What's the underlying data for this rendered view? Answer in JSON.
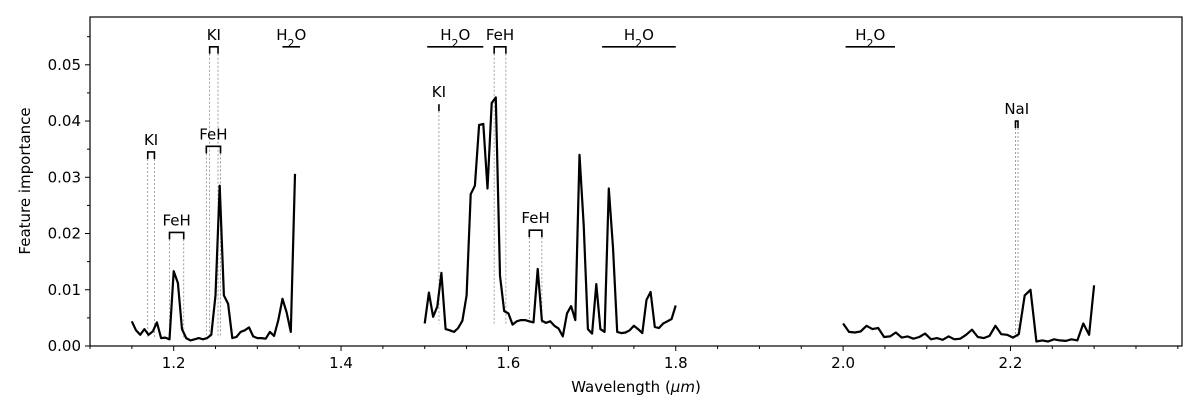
{
  "chart_data": {
    "type": "line",
    "title": "",
    "xlabel_prefix": "Wavelength (",
    "xlabel_unit": "μm",
    "xlabel_suffix": ")",
    "ylabel": "Feature importance",
    "xlim": [
      1.1,
      2.405
    ],
    "ylim": [
      0,
      0.0585
    ],
    "xticks": [
      1.2,
      1.4,
      1.6,
      1.8,
      2.0,
      2.2
    ],
    "xtick_labels": [
      "1.2",
      "1.4",
      "1.6",
      "1.8",
      "2.0",
      "2.2"
    ],
    "yticks": [
      0.0,
      0.01,
      0.02,
      0.03,
      0.04,
      0.05
    ],
    "ytick_labels": [
      "0.00",
      "0.01",
      "0.02",
      "0.03",
      "0.04",
      "0.05"
    ],
    "line_color": "#000000",
    "annotation_color": "#000000",
    "grid": false,
    "segments": [
      {
        "x": [
          1.15,
          1.155,
          1.16,
          1.165,
          1.17,
          1.175,
          1.18,
          1.185,
          1.19,
          1.195,
          1.2,
          1.205,
          1.21,
          1.215,
          1.22,
          1.225,
          1.23,
          1.235,
          1.24,
          1.245,
          1.25,
          1.255,
          1.26,
          1.265,
          1.27,
          1.275,
          1.28,
          1.285,
          1.29,
          1.295,
          1.3,
          1.305,
          1.31,
          1.315,
          1.32,
          1.325,
          1.33,
          1.335,
          1.34,
          1.345
        ],
        "y": [
          0.0044,
          0.0028,
          0.002,
          0.003,
          0.002,
          0.0026,
          0.0042,
          0.0014,
          0.0015,
          0.0012,
          0.0133,
          0.0112,
          0.003,
          0.0014,
          0.001,
          0.0012,
          0.0014,
          0.0012,
          0.0014,
          0.002,
          0.009,
          0.0285,
          0.009,
          0.0075,
          0.0014,
          0.0016,
          0.0025,
          0.0028,
          0.0033,
          0.0017,
          0.0014,
          0.0014,
          0.0013,
          0.0025,
          0.0018,
          0.0046,
          0.0084,
          0.006,
          0.0025,
          0.0306
        ]
      },
      {
        "x": [
          1.5,
          1.505,
          1.51,
          1.515,
          1.52,
          1.525,
          1.53,
          1.535,
          1.54,
          1.545,
          1.55,
          1.555,
          1.56,
          1.565,
          1.57,
          1.575,
          1.58,
          1.585,
          1.59,
          1.595,
          1.6,
          1.605,
          1.61,
          1.615,
          1.62,
          1.625,
          1.63,
          1.635,
          1.64,
          1.645,
          1.65,
          1.655,
          1.66,
          1.665,
          1.67,
          1.675,
          1.68,
          1.685,
          1.69,
          1.695,
          1.7,
          1.705,
          1.71,
          1.715,
          1.72,
          1.725,
          1.73,
          1.735,
          1.74,
          1.745,
          1.75,
          1.755,
          1.76,
          1.765,
          1.77,
          1.775,
          1.78,
          1.785,
          1.79,
          1.795,
          1.8
        ],
        "y": [
          0.004,
          0.0095,
          0.0052,
          0.007,
          0.013,
          0.003,
          0.0028,
          0.0025,
          0.0032,
          0.0045,
          0.009,
          0.027,
          0.0285,
          0.0393,
          0.0395,
          0.028,
          0.0432,
          0.0442,
          0.0125,
          0.0062,
          0.0058,
          0.0038,
          0.0044,
          0.0046,
          0.0046,
          0.0044,
          0.0042,
          0.0137,
          0.0045,
          0.0041,
          0.0044,
          0.0036,
          0.0031,
          0.0017,
          0.0058,
          0.0071,
          0.0046,
          0.034,
          0.0215,
          0.003,
          0.0022,
          0.011,
          0.003,
          0.0025,
          0.028,
          0.0175,
          0.0025,
          0.0023,
          0.0024,
          0.0028,
          0.0036,
          0.003,
          0.0023,
          0.0082,
          0.0096,
          0.0034,
          0.0032,
          0.004,
          0.0044,
          0.0048,
          0.0072
        ]
      },
      {
        "x": [
          2.0,
          2.007,
          2.014,
          2.021,
          2.028,
          2.035,
          2.042,
          2.049,
          2.056,
          2.063,
          2.07,
          2.077,
          2.084,
          2.091,
          2.098,
          2.105,
          2.112,
          2.119,
          2.126,
          2.133,
          2.14,
          2.147,
          2.154,
          2.161,
          2.168,
          2.175,
          2.182,
          2.189,
          2.196,
          2.203,
          2.21,
          2.217,
          2.224,
          2.231,
          2.238,
          2.245,
          2.252,
          2.259,
          2.266,
          2.273,
          2.28,
          2.287,
          2.294,
          2.3
        ],
        "y": [
          0.004,
          0.0025,
          0.0024,
          0.0026,
          0.0036,
          0.003,
          0.0032,
          0.0016,
          0.0017,
          0.0024,
          0.0015,
          0.0017,
          0.0013,
          0.0016,
          0.0022,
          0.0012,
          0.0014,
          0.0011,
          0.0017,
          0.0012,
          0.0013,
          0.002,
          0.0029,
          0.0016,
          0.0014,
          0.0018,
          0.0036,
          0.0021,
          0.002,
          0.0015,
          0.0021,
          0.009,
          0.01,
          0.0008,
          0.001,
          0.0008,
          0.0012,
          0.001,
          0.0009,
          0.0012,
          0.001,
          0.004,
          0.002,
          0.0108
        ]
      }
    ],
    "annotations": [
      {
        "label": "KI",
        "type": "bracket",
        "x1": 1.169,
        "x2": 1.177,
        "y": 0.0345,
        "drop_to": 0.0015
      },
      {
        "label": "KI",
        "type": "bracket",
        "x1": 1.243,
        "x2": 1.253,
        "y": 0.0532,
        "drop_to": 0.0015
      },
      {
        "label": "KI",
        "type": "tick",
        "x1": 1.517,
        "x2": 1.517,
        "y": 0.043,
        "drop_to": 0.004
      },
      {
        "label": "NaI",
        "type": "bracket",
        "x1": 2.206,
        "x2": 2.209,
        "y": 0.04,
        "drop_to": 0.0015
      },
      {
        "label": "FeH",
        "type": "bracket",
        "x1": 1.195,
        "x2": 1.212,
        "y": 0.0202,
        "drop_to": 0.0015
      },
      {
        "label": "FeH",
        "type": "bracket",
        "x1": 1.239,
        "x2": 1.256,
        "y": 0.0355,
        "drop_to": 0.0015
      },
      {
        "label": "FeH",
        "type": "bracket",
        "x1": 1.583,
        "x2": 1.597,
        "y": 0.0532,
        "drop_to": 0.004
      },
      {
        "label": "FeH",
        "type": "bracket",
        "x1": 1.625,
        "x2": 1.64,
        "y": 0.0206,
        "drop_to": 0.004
      },
      {
        "label": "H2O",
        "type": "band",
        "x1": 1.33,
        "x2": 1.351,
        "y": 0.0532
      },
      {
        "label": "H2O",
        "type": "band",
        "x1": 1.503,
        "x2": 1.57,
        "y": 0.0532
      },
      {
        "label": "H2O",
        "type": "band",
        "x1": 1.712,
        "x2": 1.8,
        "y": 0.0532
      },
      {
        "label": "H2O",
        "type": "band",
        "x1": 2.003,
        "x2": 2.062,
        "y": 0.0532
      }
    ]
  }
}
